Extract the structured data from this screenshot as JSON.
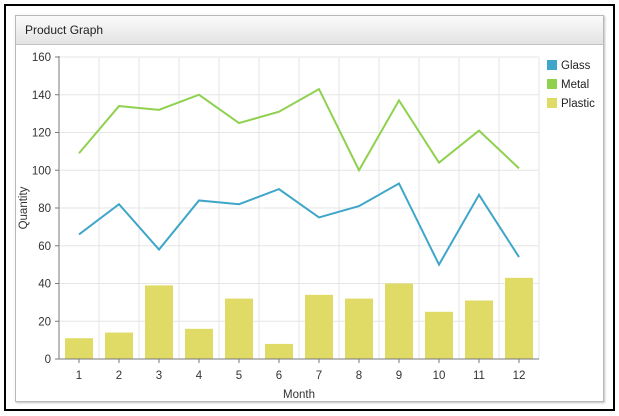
{
  "panel": {
    "title": "Product Graph"
  },
  "chart_data": {
    "type": "bar+line",
    "title": "Product Graph",
    "xlabel": "Month",
    "ylabel": "Quantity",
    "ylim": [
      0,
      160
    ],
    "yticks": [
      0,
      20,
      40,
      60,
      80,
      100,
      120,
      140,
      160
    ],
    "categories": [
      "1",
      "2",
      "3",
      "4",
      "5",
      "6",
      "7",
      "8",
      "9",
      "10",
      "11",
      "12"
    ],
    "grid": true,
    "legend_position": "top-right",
    "series": [
      {
        "name": "Glass",
        "type": "line",
        "color": "#3fa6c9",
        "values": [
          66,
          82,
          58,
          84,
          82,
          90,
          75,
          81,
          93,
          50,
          87,
          54
        ]
      },
      {
        "name": "Metal",
        "type": "line",
        "color": "#8fd14f",
        "values": [
          109,
          134,
          132,
          140,
          125,
          131,
          143,
          100,
          137,
          104,
          121,
          101
        ]
      },
      {
        "name": "Plastic",
        "type": "bar",
        "color": "#e0da66",
        "values": [
          11,
          14,
          39,
          16,
          32,
          8,
          34,
          32,
          40,
          25,
          31,
          43
        ]
      }
    ]
  }
}
